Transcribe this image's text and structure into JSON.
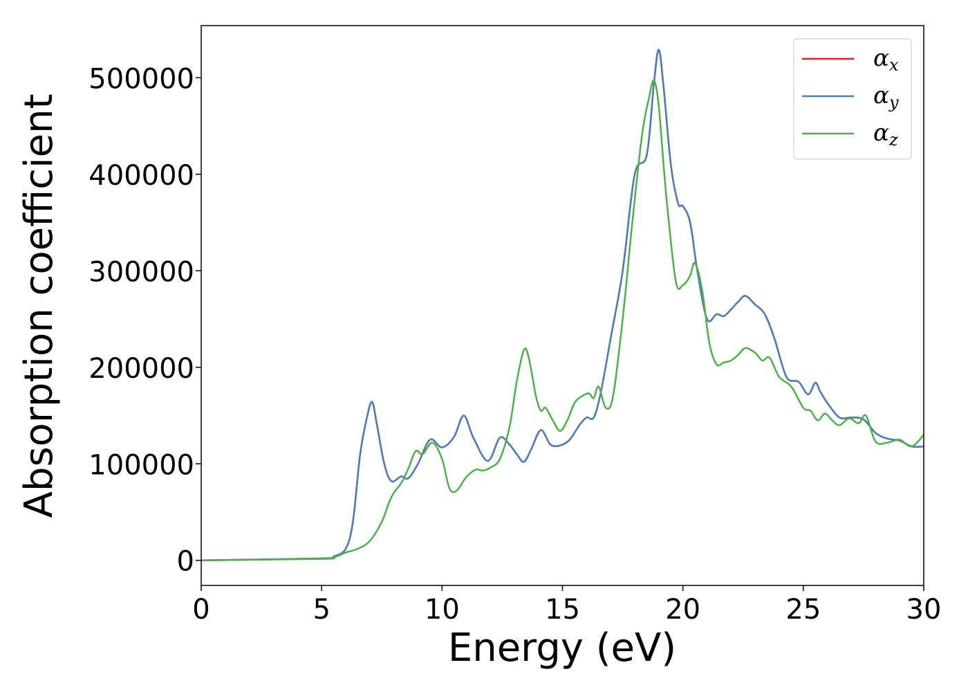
{
  "chart_data": {
    "type": "line",
    "title": "",
    "xlabel": "Energy (eV)",
    "ylabel": "Absorption coefficient",
    "xlim": [
      0,
      30
    ],
    "ylim": [
      -26000,
      554000
    ],
    "xticks": [
      0,
      5,
      10,
      15,
      20,
      25,
      30
    ],
    "yticks": [
      0,
      100000,
      200000,
      300000,
      400000,
      500000
    ],
    "grid": false,
    "legend_position": "top-right",
    "series": [
      {
        "name": "α_x",
        "symbol": "α",
        "subscript": "x",
        "color": "#e41a1c",
        "x": [
          0,
          5,
          5.5,
          6,
          6.3,
          6.6,
          6.9,
          7.1,
          7.3,
          7.6,
          7.9,
          8.3,
          8.6,
          9.0,
          9.5,
          10.0,
          10.5,
          10.9,
          11.3,
          11.9,
          12.4,
          12.8,
          13.1,
          13.4,
          13.7,
          14.1,
          14.5,
          14.9,
          15.3,
          15.7,
          16.0,
          16.3,
          16.6,
          17.0,
          17.5,
          18.0,
          18.5,
          18.8,
          19.0,
          19.2,
          19.5,
          19.8,
          20.0,
          20.3,
          20.6,
          21.0,
          21.4,
          21.7,
          22.0,
          22.3,
          22.6,
          23.0,
          23.4,
          23.8,
          24.3,
          24.8,
          25.2,
          25.5,
          25.7,
          26.0,
          26.5,
          27.0,
          27.5,
          28.0,
          28.5,
          29.0,
          29.5,
          30.0
        ],
        "y": [
          0,
          2000,
          4000,
          12000,
          40000,
          110000,
          150000,
          164000,
          140000,
          100000,
          82000,
          87000,
          85000,
          100000,
          125000,
          117000,
          128000,
          150000,
          127000,
          103000,
          127000,
          120000,
          110000,
          102000,
          115000,
          135000,
          120000,
          119000,
          125000,
          140000,
          148000,
          148000,
          175000,
          230000,
          300000,
          400000,
          420000,
          495000,
          529000,
          490000,
          410000,
          370000,
          367000,
          350000,
          300000,
          250000,
          255000,
          253000,
          260000,
          268000,
          274000,
          265000,
          255000,
          230000,
          190000,
          185000,
          172000,
          184000,
          175000,
          163000,
          148000,
          148000,
          146000,
          132000,
          126000,
          124000,
          118000,
          118000
        ]
      },
      {
        "name": "α_y",
        "symbol": "α",
        "subscript": "y",
        "color": "#4a7fb8",
        "x": [
          0,
          5,
          5.5,
          6,
          6.3,
          6.6,
          6.9,
          7.1,
          7.3,
          7.6,
          7.9,
          8.3,
          8.6,
          9.0,
          9.5,
          10.0,
          10.5,
          10.9,
          11.3,
          11.9,
          12.4,
          12.8,
          13.1,
          13.4,
          13.7,
          14.1,
          14.5,
          14.9,
          15.3,
          15.7,
          16.0,
          16.3,
          16.6,
          17.0,
          17.5,
          18.0,
          18.5,
          18.8,
          19.0,
          19.2,
          19.5,
          19.8,
          20.0,
          20.3,
          20.6,
          21.0,
          21.4,
          21.7,
          22.0,
          22.3,
          22.6,
          23.0,
          23.4,
          23.8,
          24.3,
          24.8,
          25.2,
          25.5,
          25.7,
          26.0,
          26.5,
          27.0,
          27.5,
          28.0,
          28.5,
          29.0,
          29.5,
          30.0
        ],
        "y": [
          0,
          2000,
          4000,
          12000,
          40000,
          110000,
          150000,
          164000,
          140000,
          100000,
          82000,
          87000,
          85000,
          100000,
          125000,
          117000,
          128000,
          150000,
          127000,
          103000,
          127000,
          120000,
          110000,
          102000,
          115000,
          135000,
          120000,
          119000,
          125000,
          140000,
          148000,
          148000,
          175000,
          230000,
          300000,
          400000,
          420000,
          495000,
          529000,
          490000,
          410000,
          370000,
          367000,
          350000,
          300000,
          250000,
          255000,
          253000,
          260000,
          268000,
          274000,
          265000,
          255000,
          230000,
          190000,
          185000,
          172000,
          184000,
          175000,
          163000,
          148000,
          148000,
          146000,
          132000,
          126000,
          124000,
          118000,
          118000
        ]
      },
      {
        "name": "α_z",
        "symbol": "α",
        "subscript": "z",
        "color": "#4daf4a",
        "x": [
          0,
          5,
          5.5,
          6,
          6.5,
          7.0,
          7.5,
          7.8,
          8.0,
          8.3,
          8.6,
          8.9,
          9.2,
          9.6,
          10.0,
          10.3,
          10.6,
          11.0,
          11.4,
          11.7,
          12.0,
          12.4,
          12.8,
          13.1,
          13.4,
          13.6,
          13.9,
          14.1,
          14.3,
          14.6,
          14.9,
          15.2,
          15.5,
          15.8,
          16.1,
          16.3,
          16.5,
          16.8,
          17.1,
          17.5,
          17.9,
          18.3,
          18.6,
          18.8,
          19.0,
          19.3,
          19.7,
          20.0,
          20.3,
          20.5,
          20.8,
          21.1,
          21.4,
          21.7,
          22.0,
          22.3,
          22.6,
          23.0,
          23.3,
          23.6,
          24.0,
          24.5,
          25.0,
          25.3,
          25.6,
          25.9,
          26.2,
          26.5,
          26.9,
          27.3,
          27.6,
          28.0,
          28.5,
          29.0,
          29.5,
          30.0
        ],
        "y": [
          0,
          1500,
          3000,
          8000,
          12000,
          20000,
          40000,
          60000,
          70000,
          80000,
          95000,
          113000,
          110000,
          122000,
          105000,
          75000,
          72000,
          86000,
          94000,
          93000,
          96000,
          105000,
          138000,
          185000,
          218000,
          210000,
          170000,
          155000,
          158000,
          145000,
          134000,
          145000,
          163000,
          170000,
          173000,
          168000,
          180000,
          158000,
          170000,
          250000,
          350000,
          440000,
          480000,
          497000,
          470000,
          380000,
          290000,
          285000,
          295000,
          308000,
          280000,
          225000,
          203000,
          205000,
          207000,
          213000,
          220000,
          215000,
          207000,
          210000,
          190000,
          180000,
          158000,
          155000,
          145000,
          152000,
          145000,
          140000,
          147000,
          142000,
          150000,
          123000,
          122000,
          125000,
          118000,
          130000
        ]
      }
    ]
  }
}
